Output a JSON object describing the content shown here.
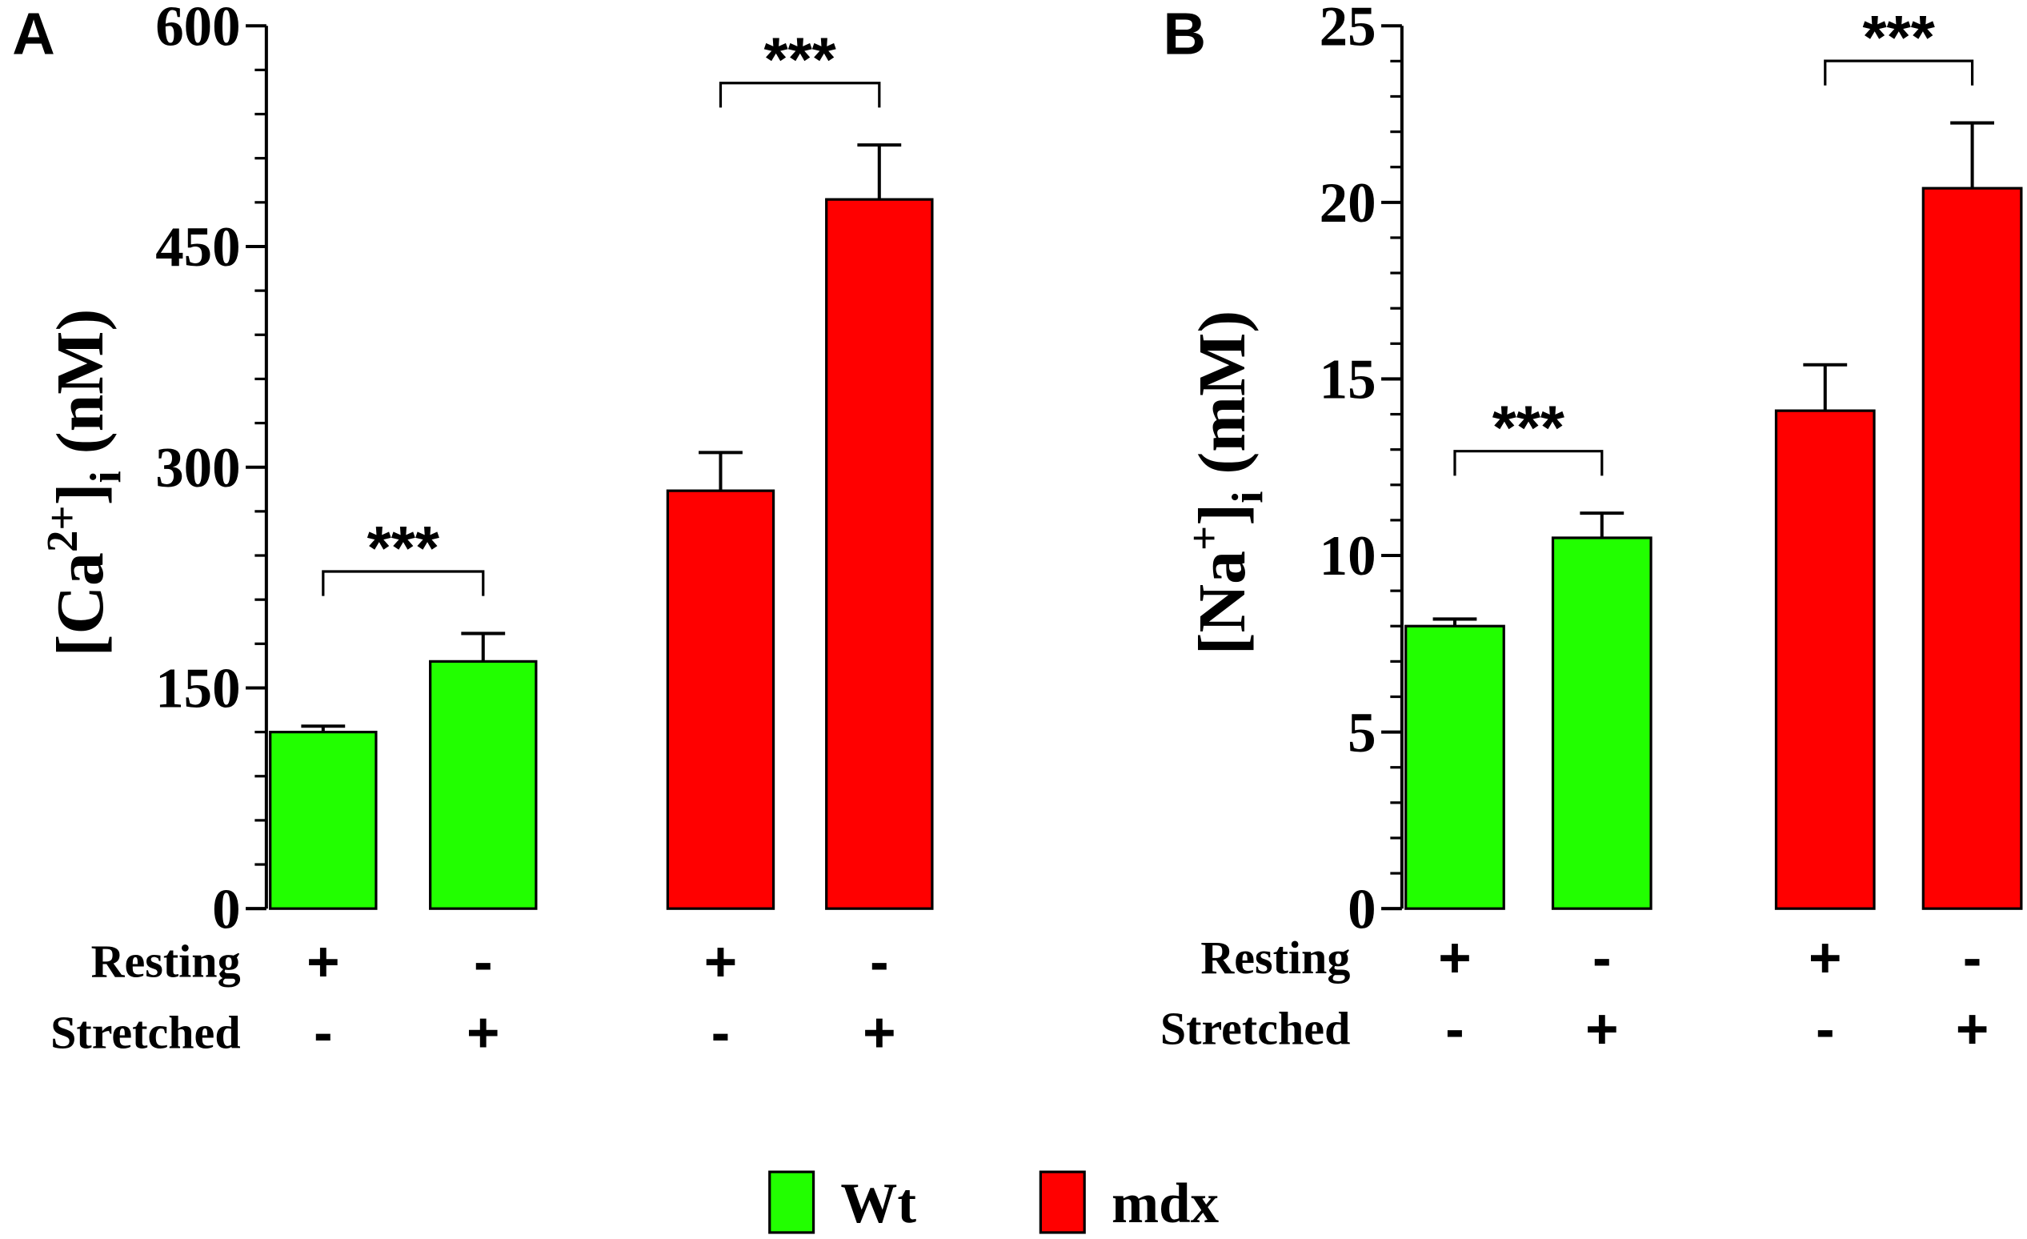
{
  "chart_data": [
    {
      "type": "bar",
      "panel": "A",
      "ylabel": {
        "base": "[Ca",
        "sup": "2+",
        "after": "]",
        "sub": "i",
        "unit": " (nM)"
      },
      "ylim": [
        0,
        600
      ],
      "yticks": [
        0,
        150,
        300,
        450,
        600
      ],
      "minor_yticks": [
        30,
        60,
        90,
        120,
        180,
        210,
        240,
        270,
        330,
        360,
        390,
        420,
        480,
        510,
        540,
        570
      ],
      "conditions": [
        {
          "name": "Resting",
          "marks": [
            "+",
            "-",
            "+",
            "-"
          ]
        },
        {
          "name": "Stretched",
          "marks": [
            "-",
            "+",
            "-",
            "+"
          ]
        }
      ],
      "series": [
        {
          "name": "Wt",
          "color": "#22ff00",
          "values": [
            120,
            168
          ],
          "errors": [
            4,
            19
          ]
        },
        {
          "name": "mdx",
          "color": "#ff0000",
          "values": [
            284,
            482
          ],
          "errors": [
            26,
            37
          ]
        }
      ],
      "annotations": [
        {
          "text": "***",
          "series": 0
        },
        {
          "text": "***",
          "series": 1
        }
      ]
    },
    {
      "type": "bar",
      "panel": "B",
      "ylabel": {
        "base": "[Na",
        "sup": "+",
        "after": "]",
        "sub": "i",
        "unit": " (mM)"
      },
      "ylim": [
        0,
        25
      ],
      "yticks": [
        0,
        5,
        10,
        15,
        20,
        25
      ],
      "minor_yticks": [
        1,
        2,
        3,
        4,
        6,
        7,
        8,
        9,
        11,
        12,
        13,
        14,
        16,
        17,
        18,
        19,
        21,
        22,
        23,
        24
      ],
      "conditions": [
        {
          "name": "Resting",
          "marks": [
            "+",
            "-",
            "+",
            "-"
          ]
        },
        {
          "name": "Stretched",
          "marks": [
            "-",
            "+",
            "-",
            "+"
          ]
        }
      ],
      "series": [
        {
          "name": "Wt",
          "color": "#22ff00",
          "values": [
            8.0,
            10.5
          ],
          "errors": [
            0.2,
            0.7
          ]
        },
        {
          "name": "mdx",
          "color": "#ff0000",
          "values": [
            14.1,
            20.4
          ],
          "errors": [
            1.3,
            1.85
          ]
        }
      ],
      "annotations": [
        {
          "text": "***",
          "series": 0
        },
        {
          "text": "***",
          "series": 1
        }
      ]
    }
  ]
}
